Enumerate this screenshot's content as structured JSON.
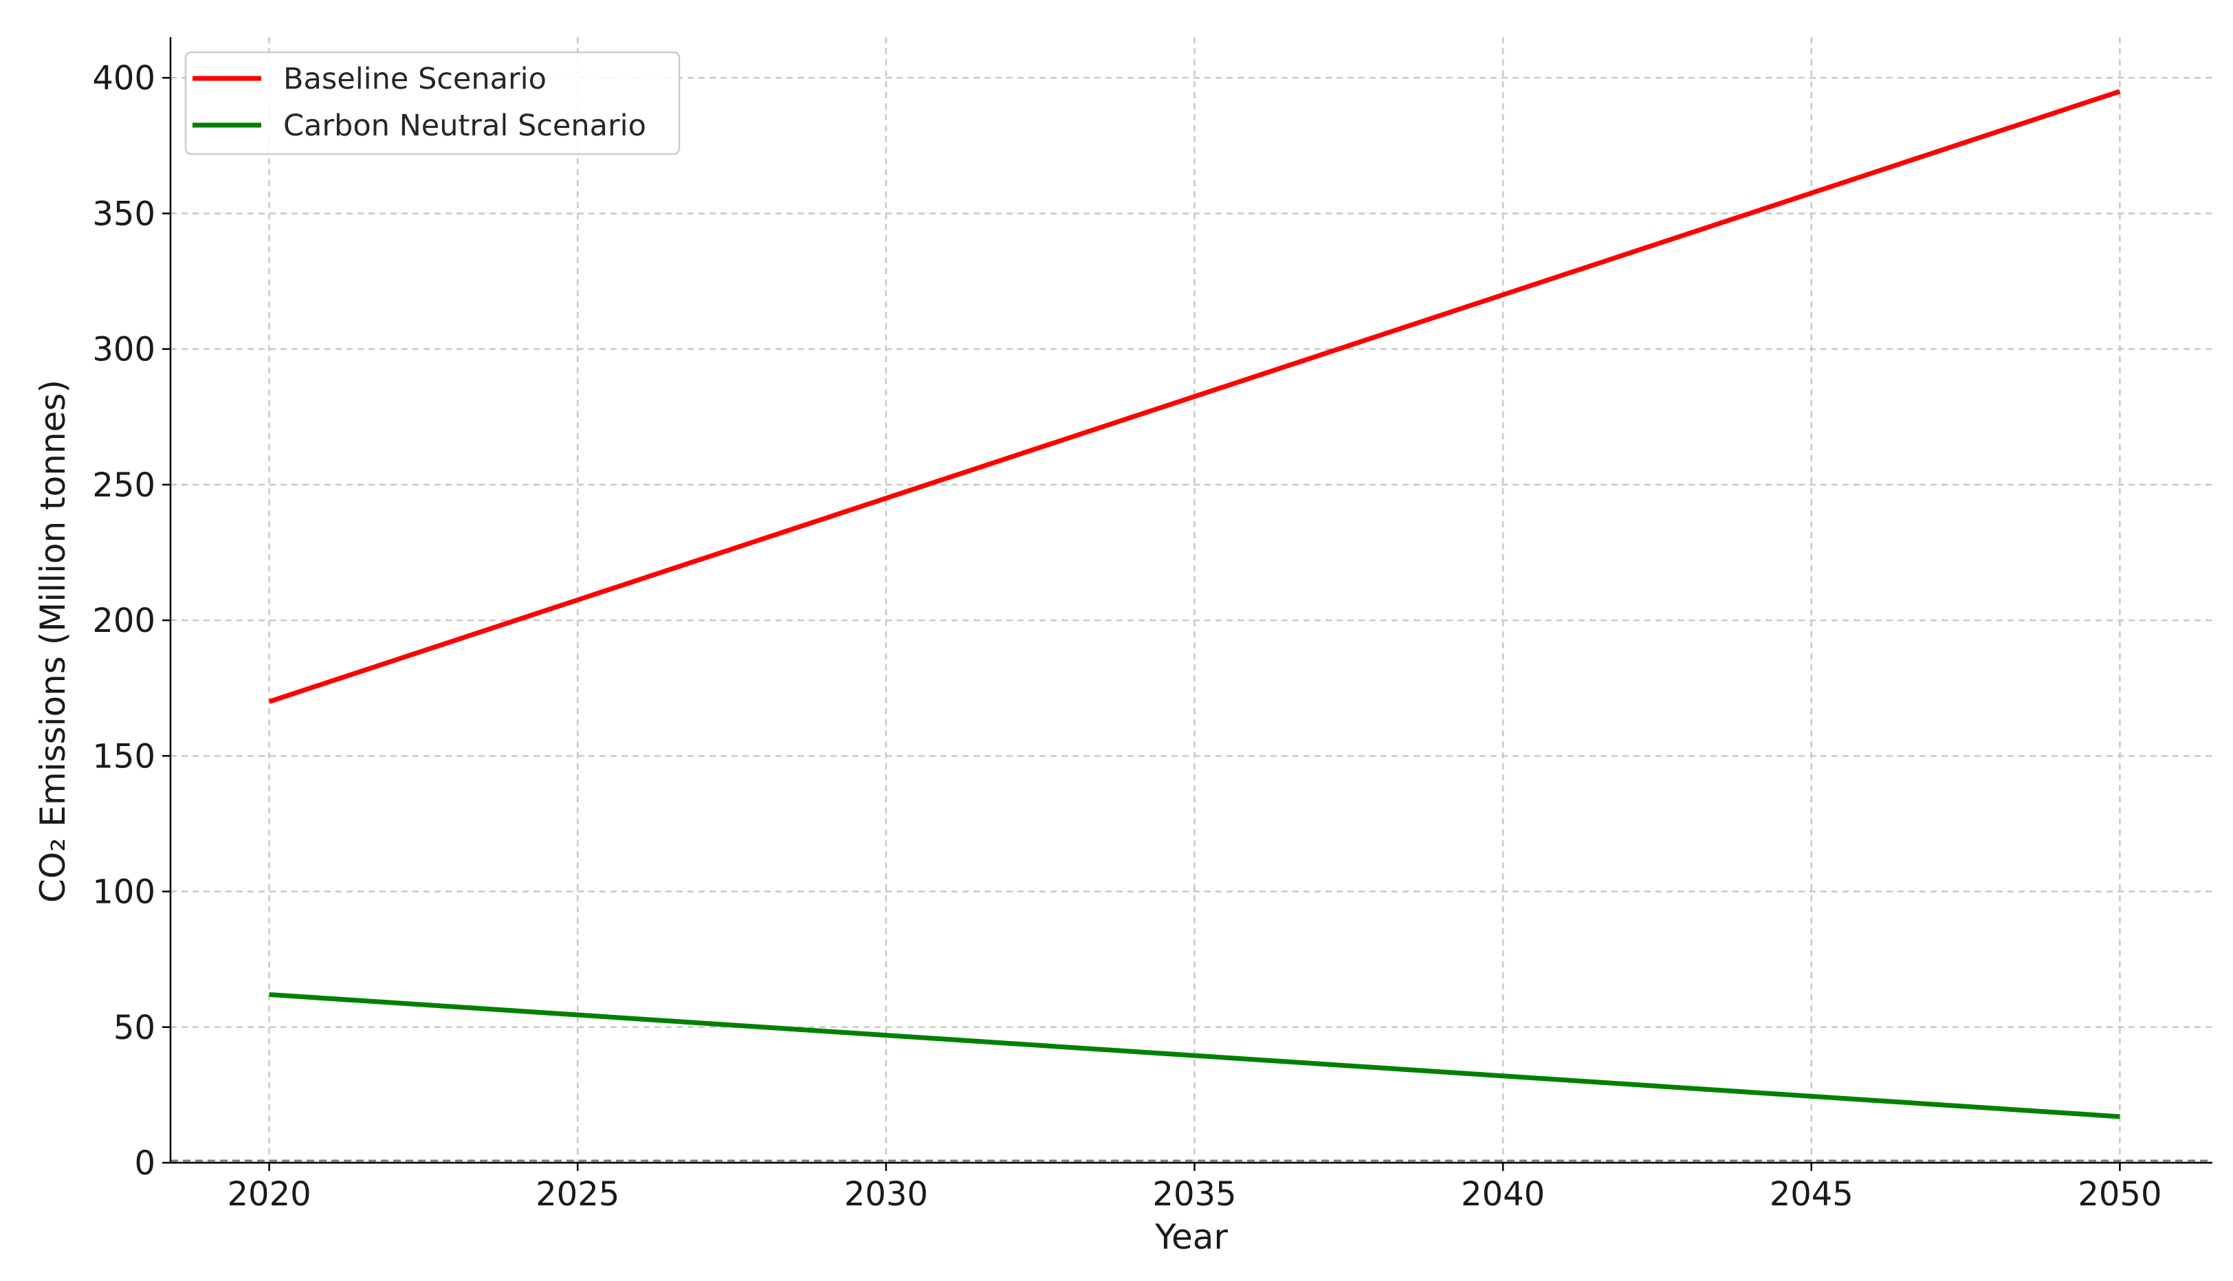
{
  "chart_data": {
    "type": "line",
    "title": "",
    "xlabel": "Year",
    "ylabel": "CO₂ Emissions (Million tonnes)",
    "xlim": [
      2018.4,
      2051.5
    ],
    "ylim": [
      0,
      415
    ],
    "x_ticks": [
      2020,
      2025,
      2030,
      2035,
      2040,
      2045,
      2050
    ],
    "y_ticks": [
      0,
      50,
      100,
      150,
      200,
      250,
      300,
      350,
      400
    ],
    "grid": true,
    "legend_position": "top-left",
    "series": [
      {
        "name": "Baseline Scenario",
        "color": "#ff0000",
        "x": [
          2020,
          2050
        ],
        "y": [
          170,
          395
        ]
      },
      {
        "name": "Carbon Neutral Scenario",
        "color": "#008000",
        "x": [
          2020,
          2050
        ],
        "y": [
          62,
          17
        ]
      }
    ],
    "reference_lines": [
      {
        "axis": "y",
        "value": 0,
        "color": "#808080",
        "style": "dashed"
      }
    ]
  }
}
